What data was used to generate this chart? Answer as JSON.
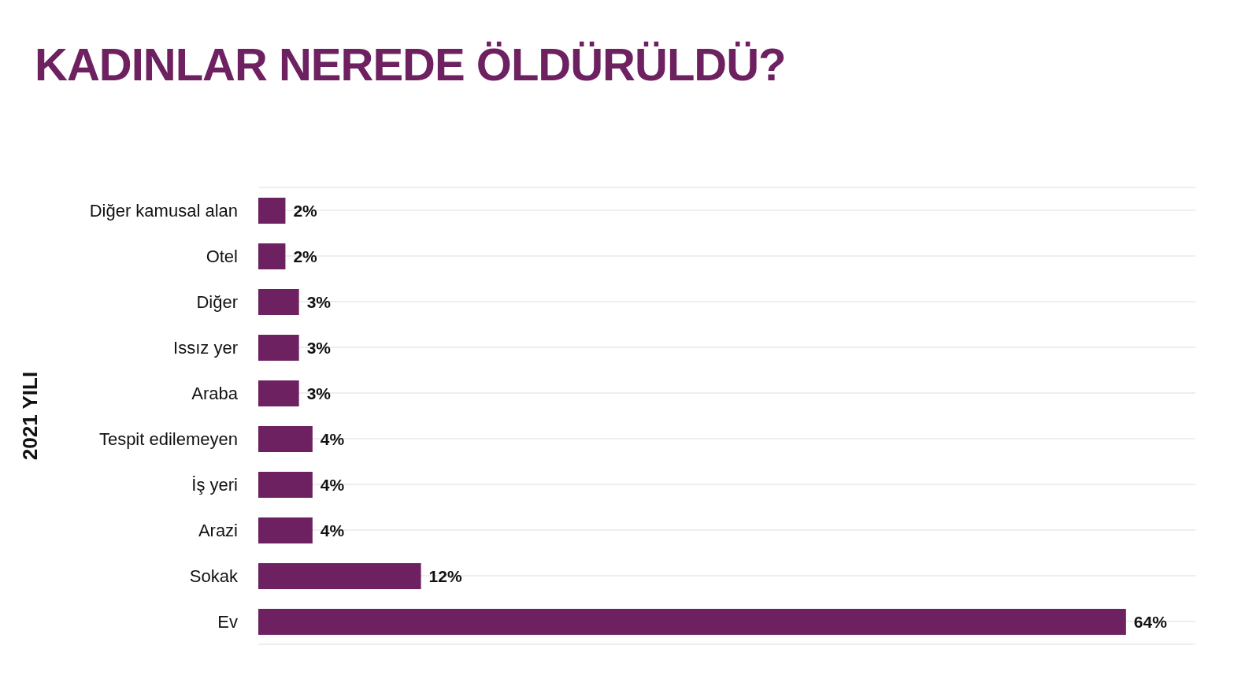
{
  "chart_data": {
    "type": "bar",
    "orientation": "horizontal",
    "title": "KADINLAR NEREDE ÖLDÜRÜLDÜ?",
    "ylabel": "2021 YILI",
    "categories": [
      "Diğer kamusal alan",
      "Otel",
      "Diğer",
      "Issız yer",
      "Araba",
      "Tespit edilemeyen",
      "İş yeri",
      "Arazi",
      "Sokak",
      "Ev"
    ],
    "values": [
      2,
      2,
      3,
      3,
      3,
      4,
      4,
      4,
      12,
      64
    ],
    "value_labels": [
      "2%",
      "2%",
      "3%",
      "3%",
      "3%",
      "4%",
      "4%",
      "4%",
      "12%",
      "64%"
    ],
    "color": "#6e2160",
    "grid": "y",
    "tick_labels": "y"
  }
}
